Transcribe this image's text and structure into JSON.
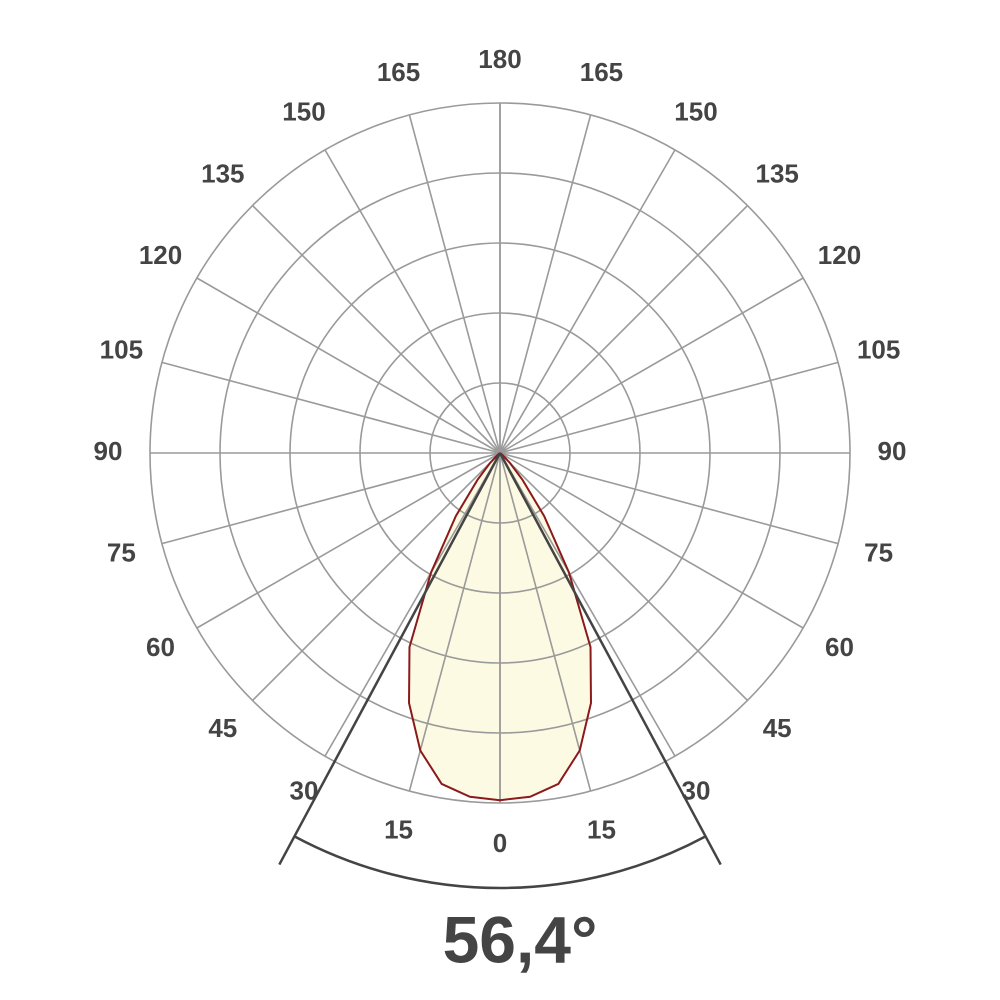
{
  "chart_data": {
    "type": "polar",
    "angle_ticks": [
      0,
      15,
      30,
      45,
      60,
      75,
      90,
      105,
      120,
      135,
      150,
      165,
      180
    ],
    "x": [
      0,
      5,
      10,
      15,
      20,
      25,
      30,
      35,
      40,
      45,
      50,
      55,
      60,
      65,
      70,
      75,
      80,
      85,
      90
    ],
    "series": [
      {
        "color": "#8b1a1a",
        "fill": "#fdfae3",
        "values": [
          4.96,
          4.93,
          4.8,
          4.4,
          3.8,
          3.06,
          1.97,
          1.1,
          0.5,
          0.2,
          0.05,
          0.01,
          0,
          0,
          0,
          0,
          0,
          0,
          0
        ]
      }
    ],
    "rlim": [
      0,
      5
    ],
    "rticks": [
      1,
      2,
      3,
      4,
      5
    ],
    "grid": true,
    "beam_angle": 56.4,
    "beam_angle_label": "56,4°"
  }
}
